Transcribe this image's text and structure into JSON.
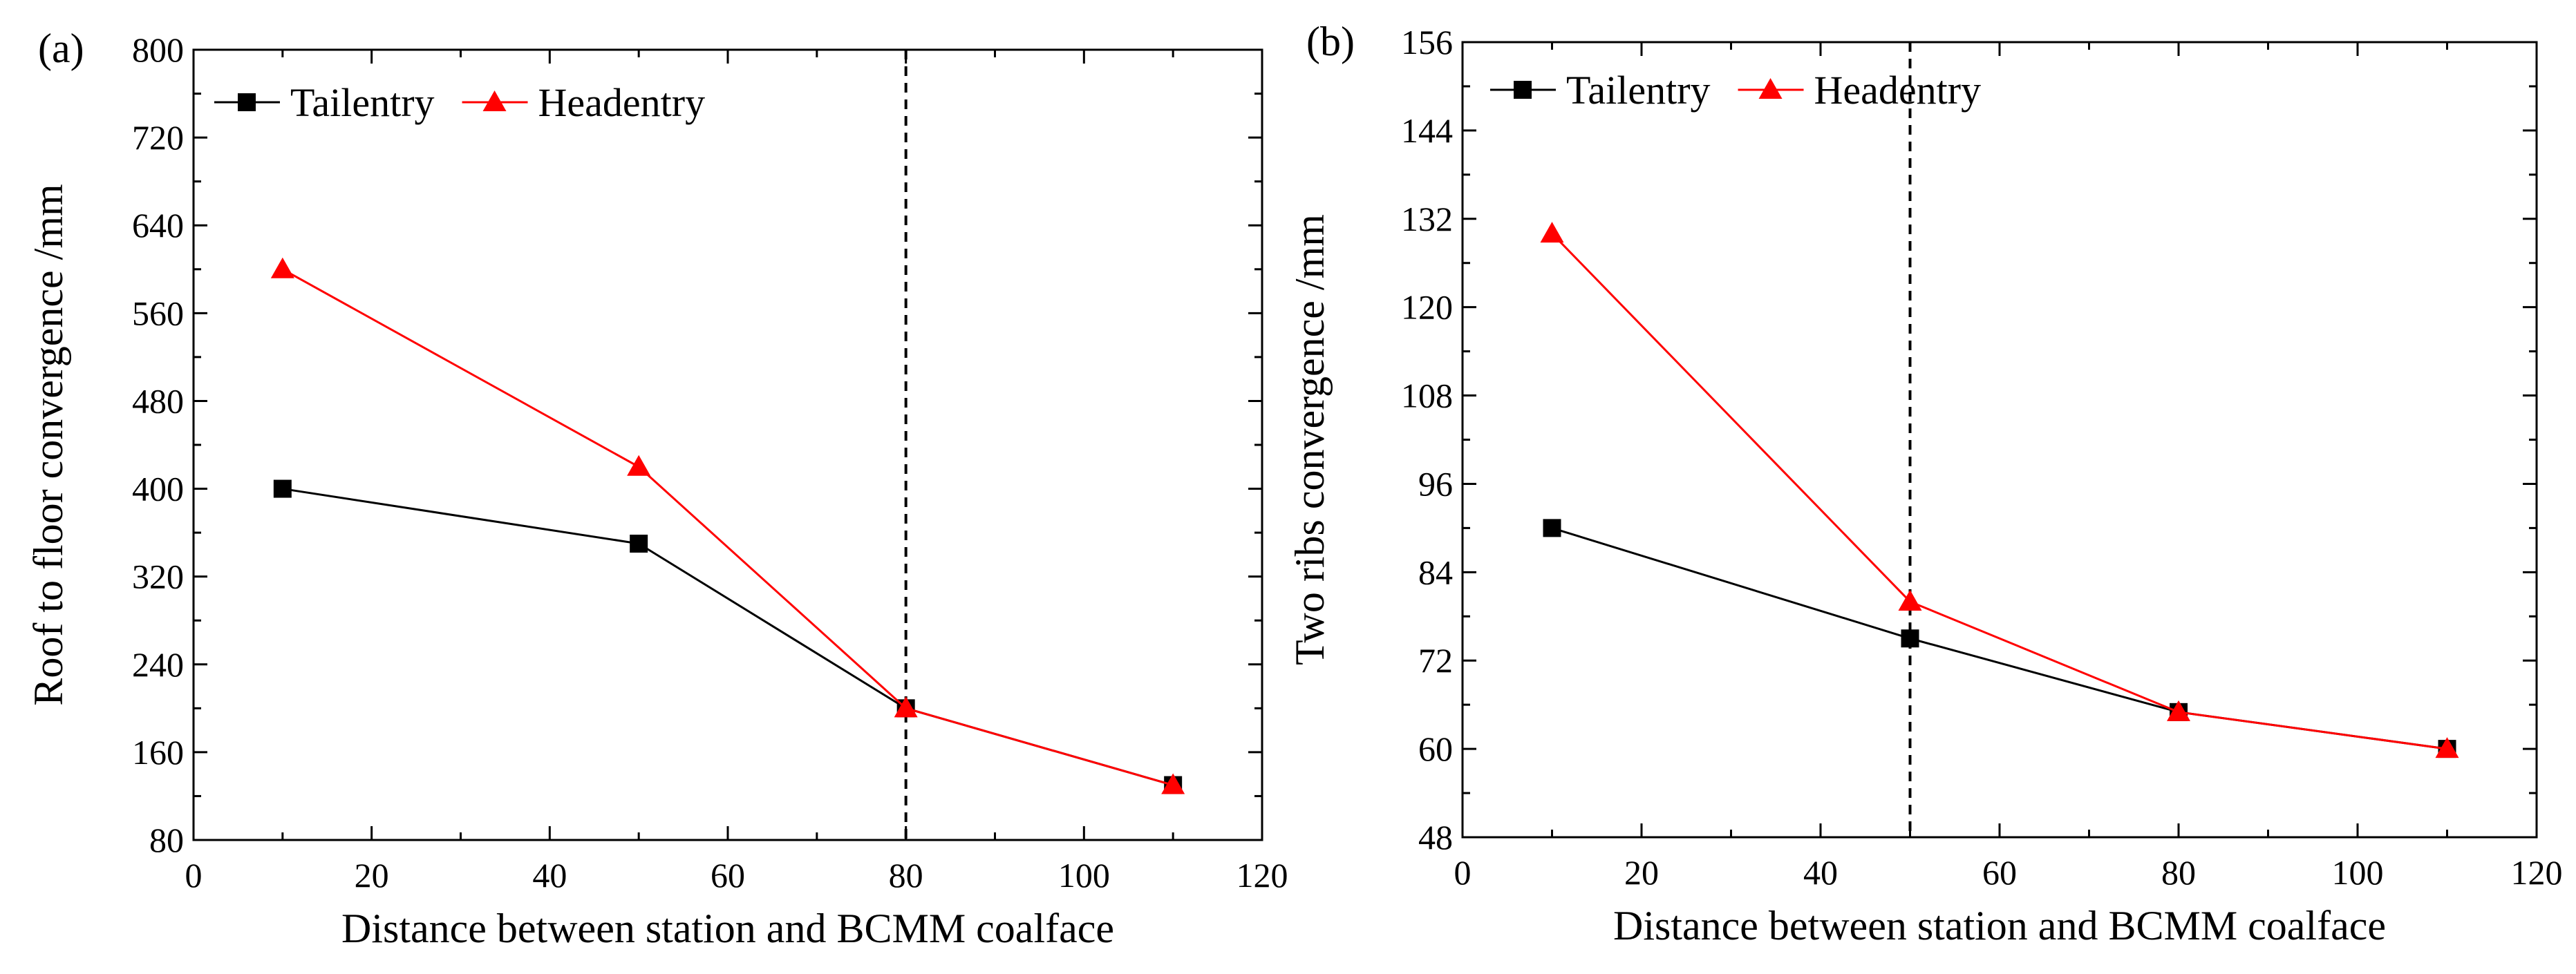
{
  "chart_data": [
    {
      "panel_label": "(a)",
      "type": "line",
      "xlabel": "Distance between station and BCMM coalface",
      "ylabel": "Roof  to floor convergence /mm",
      "xlim": [
        0,
        120
      ],
      "ylim": [
        80,
        800
      ],
      "xticks": [
        0,
        20,
        40,
        60,
        80,
        100,
        120
      ],
      "yticks": [
        80,
        160,
        240,
        320,
        400,
        480,
        560,
        640,
        720,
        800
      ],
      "reference_line_x": 80,
      "legend_position": "top-left",
      "series": [
        {
          "name": "Tailentry",
          "color": "#000000",
          "marker": "square",
          "x": [
            10,
            50,
            80,
            110
          ],
          "y": [
            400,
            350,
            200,
            130
          ]
        },
        {
          "name": "Headentry",
          "color": "#ff0000",
          "marker": "triangle",
          "x": [
            10,
            50,
            80,
            110
          ],
          "y": [
            600,
            420,
            200,
            130
          ]
        }
      ]
    },
    {
      "panel_label": "(b)",
      "type": "line",
      "xlabel": "Distance between station and BCMM coalface",
      "ylabel": "Two ribs convergence /mm",
      "xlim": [
        0,
        120
      ],
      "ylim": [
        48,
        156
      ],
      "xticks": [
        0,
        20,
        40,
        60,
        80,
        100,
        120
      ],
      "yticks": [
        48,
        60,
        72,
        84,
        96,
        108,
        120,
        132,
        144,
        156
      ],
      "reference_line_x": 50,
      "legend_position": "top-left",
      "series": [
        {
          "name": "Tailentry",
          "color": "#000000",
          "marker": "square",
          "x": [
            10,
            50,
            80,
            110
          ],
          "y": [
            90,
            75,
            65,
            60
          ]
        },
        {
          "name": "Headentry",
          "color": "#ff0000",
          "marker": "triangle",
          "x": [
            10,
            50,
            80,
            110
          ],
          "y": [
            130,
            80,
            65,
            60
          ]
        }
      ]
    }
  ]
}
